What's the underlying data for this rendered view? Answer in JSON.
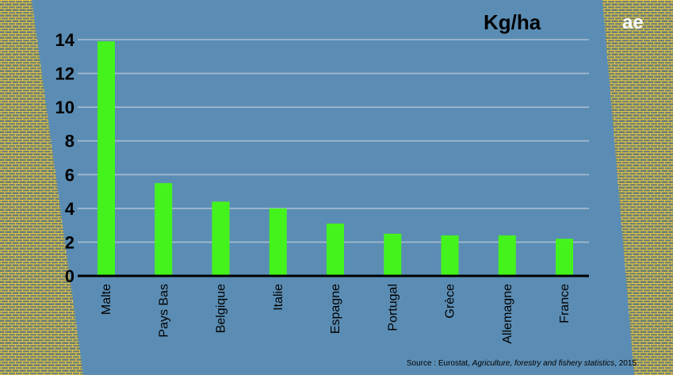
{
  "chart_data": {
    "type": "bar",
    "unit_label": "Kg/ha",
    "categories": [
      "Malte",
      "Pays Bas",
      "Belgique",
      "Italie",
      "Espagne",
      "Portugal",
      "Grèce",
      "Allemagne",
      "France"
    ],
    "values": [
      13.9,
      5.5,
      4.4,
      4.0,
      3.1,
      2.5,
      2.4,
      2.4,
      2.2
    ],
    "yticks": [
      "0",
      "2",
      "4",
      "6",
      "8",
      "10",
      "12",
      "14"
    ],
    "ylim": [
      0,
      14
    ],
    "grid": true,
    "legend": "none",
    "bar_color": "#44f31c",
    "source": {
      "prefix": "Source : Eurostat, ",
      "title": "Agriculture, forestry and fishery statistics",
      "suffix": ", 2015"
    }
  },
  "logo": {
    "text": "ae"
  },
  "colors": {
    "background": "#5b8db4",
    "grid": "#a9bdd0",
    "axis": "#000000",
    "pattern": "#e2c44a",
    "pattern_dark": "#6c7f73"
  }
}
